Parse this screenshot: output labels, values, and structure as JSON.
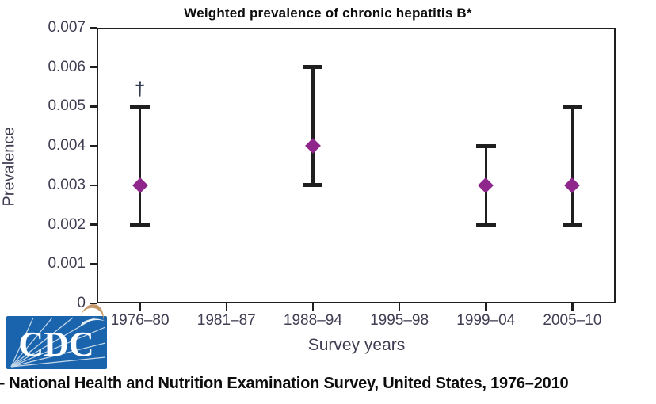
{
  "figure": {
    "footer": "– National Health and Nutrition Examination Survey, United States, 1976–2010"
  },
  "logo": {
    "text": "CDC"
  },
  "chart_data": {
    "type": "scatter",
    "title": "Weighted prevalence of chronic hepatitis B*",
    "xlabel": "Survey years",
    "ylabel": "Prevalence",
    "ylim": [
      0,
      0.007
    ],
    "grid": false,
    "legend": "none",
    "marker": "diamond",
    "colors": {
      "marker": "#8f268c",
      "error_bar": "#1f1f1f",
      "axis_text": "#3f3e52",
      "cdc_blue": "#1a64ad"
    },
    "y_ticks": [
      "0.007",
      "0.006",
      "0.005",
      "0.004",
      "0.003",
      "0.002",
      "0.001",
      "0"
    ],
    "categories": [
      "1976–80",
      "1981–87",
      "1988–94",
      "1995–98",
      "1999–04",
      "2005–10"
    ],
    "points": [
      {
        "category": "1976–80",
        "value": 0.003,
        "ci_low": 0.002,
        "ci_high": 0.005,
        "annotation": "†"
      },
      {
        "category": "1988–94",
        "value": 0.004,
        "ci_low": 0.003,
        "ci_high": 0.006,
        "annotation": ""
      },
      {
        "category": "1999–04",
        "value": 0.003,
        "ci_low": 0.002,
        "ci_high": 0.004,
        "annotation": ""
      },
      {
        "category": "2005–10",
        "value": 0.003,
        "ci_low": 0.002,
        "ci_high": 0.005,
        "annotation": ""
      }
    ]
  }
}
